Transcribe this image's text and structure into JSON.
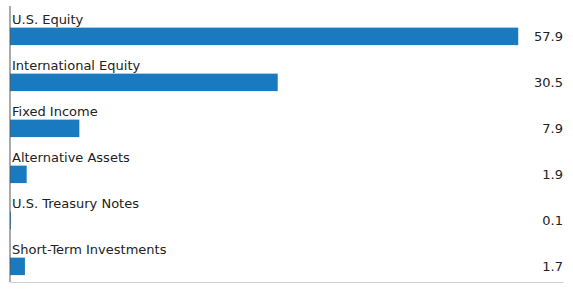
{
  "chart_data": {
    "type": "bar",
    "orientation": "horizontal",
    "categories": [
      "U.S. Equity",
      "International Equity",
      "Fixed Income",
      "Alternative Assets",
      "U.S. Treasury Notes",
      "Short-Term Investments"
    ],
    "values": [
      57.9,
      30.5,
      7.9,
      1.9,
      0.1,
      1.7
    ],
    "color": "#1a7abf",
    "xlim": [
      0,
      63
    ],
    "data_labels": true,
    "tick_labels": false,
    "grid": false
  }
}
